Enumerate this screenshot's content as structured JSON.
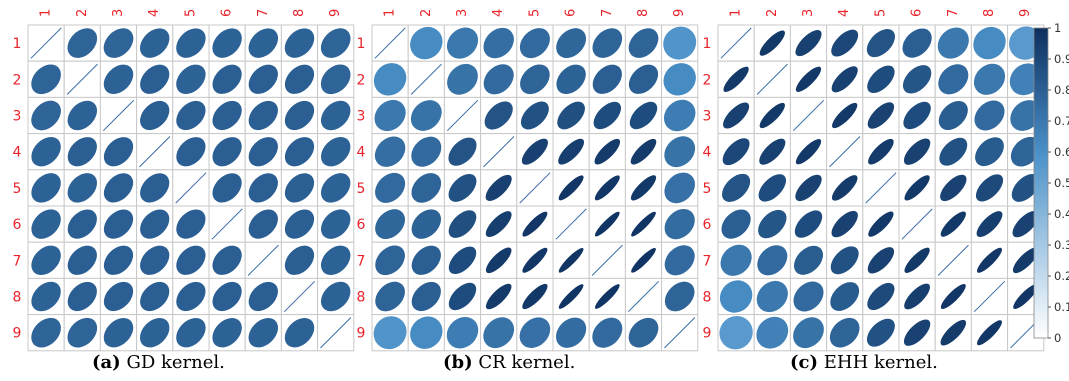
{
  "chart_data": [
    {
      "type": "heatmap",
      "caption_label": "(a)",
      "caption_text": "GD kernel.",
      "row_labels": [
        "1",
        "2",
        "3",
        "4",
        "5",
        "6",
        "7",
        "8",
        "9"
      ],
      "col_labels": [
        "1",
        "2",
        "3",
        "4",
        "5",
        "6",
        "7",
        "8",
        "9"
      ],
      "values": [
        [
          1.0,
          0.78,
          0.78,
          0.79,
          0.79,
          0.79,
          0.79,
          0.79,
          0.78
        ],
        [
          0.78,
          1.0,
          0.79,
          0.8,
          0.79,
          0.8,
          0.8,
          0.8,
          0.78
        ],
        [
          0.78,
          0.79,
          1.0,
          0.8,
          0.8,
          0.8,
          0.8,
          0.8,
          0.79
        ],
        [
          0.79,
          0.8,
          0.8,
          1.0,
          0.8,
          0.8,
          0.8,
          0.8,
          0.79
        ],
        [
          0.79,
          0.79,
          0.8,
          0.8,
          1.0,
          0.8,
          0.8,
          0.8,
          0.79
        ],
        [
          0.79,
          0.8,
          0.8,
          0.8,
          0.8,
          1.0,
          0.8,
          0.8,
          0.79
        ],
        [
          0.79,
          0.8,
          0.8,
          0.8,
          0.8,
          0.8,
          1.0,
          0.8,
          0.79
        ],
        [
          0.79,
          0.8,
          0.8,
          0.8,
          0.8,
          0.8,
          0.8,
          1.0,
          0.79
        ],
        [
          0.78,
          0.78,
          0.79,
          0.79,
          0.79,
          0.79,
          0.79,
          0.79,
          1.0
        ]
      ]
    },
    {
      "type": "heatmap",
      "caption_label": "(b)",
      "caption_text": "CR kernel.",
      "row_labels": [
        "1",
        "2",
        "3",
        "4",
        "5",
        "6",
        "7",
        "8",
        "9"
      ],
      "col_labels": [
        "1",
        "2",
        "3",
        "4",
        "5",
        "6",
        "7",
        "8",
        "9"
      ],
      "values": [
        [
          1.0,
          0.62,
          0.7,
          0.74,
          0.76,
          0.77,
          0.78,
          0.78,
          0.58
        ],
        [
          0.62,
          1.0,
          0.72,
          0.76,
          0.78,
          0.79,
          0.8,
          0.8,
          0.62
        ],
        [
          0.7,
          0.72,
          1.0,
          0.85,
          0.86,
          0.87,
          0.88,
          0.88,
          0.68
        ],
        [
          0.74,
          0.76,
          0.85,
          1.0,
          0.93,
          0.94,
          0.95,
          0.95,
          0.72
        ],
        [
          0.76,
          0.78,
          0.86,
          0.93,
          1.0,
          0.97,
          0.97,
          0.96,
          0.73
        ],
        [
          0.77,
          0.79,
          0.87,
          0.94,
          0.97,
          1.0,
          0.98,
          0.98,
          0.75
        ],
        [
          0.78,
          0.8,
          0.88,
          0.95,
          0.97,
          0.98,
          1.0,
          0.98,
          0.76
        ],
        [
          0.78,
          0.8,
          0.88,
          0.95,
          0.96,
          0.98,
          0.98,
          1.0,
          0.78
        ],
        [
          0.58,
          0.62,
          0.68,
          0.72,
          0.73,
          0.75,
          0.76,
          0.78,
          1.0
        ]
      ]
    },
    {
      "type": "heatmap",
      "caption_label": "(c)",
      "caption_text": "EHH kernel.",
      "row_labels": [
        "1",
        "2",
        "3",
        "4",
        "5",
        "6",
        "7",
        "8",
        "9"
      ],
      "col_labels": [
        "1",
        "2",
        "3",
        "4",
        "5",
        "6",
        "7",
        "8",
        "9"
      ],
      "values": [
        [
          1.0,
          0.96,
          0.93,
          0.9,
          0.85,
          0.8,
          0.7,
          0.62,
          0.55
        ],
        [
          0.96,
          1.0,
          0.96,
          0.93,
          0.88,
          0.84,
          0.76,
          0.7,
          0.66
        ],
        [
          0.93,
          0.96,
          1.0,
          0.96,
          0.92,
          0.88,
          0.81,
          0.76,
          0.72
        ],
        [
          0.9,
          0.93,
          0.96,
          1.0,
          0.95,
          0.92,
          0.86,
          0.82,
          0.78
        ],
        [
          0.85,
          0.88,
          0.92,
          0.95,
          1.0,
          0.96,
          0.92,
          0.89,
          0.86
        ],
        [
          0.8,
          0.84,
          0.88,
          0.92,
          0.96,
          1.0,
          0.96,
          0.94,
          0.92
        ],
        [
          0.7,
          0.76,
          0.81,
          0.86,
          0.92,
          0.96,
          1.0,
          0.97,
          0.95
        ],
        [
          0.62,
          0.7,
          0.76,
          0.82,
          0.89,
          0.94,
          0.97,
          1.0,
          0.97
        ],
        [
          0.55,
          0.66,
          0.72,
          0.78,
          0.86,
          0.92,
          0.95,
          0.97,
          1.0
        ]
      ]
    }
  ],
  "colorbar": {
    "ticks": [
      "0",
      "0.1",
      "0.2",
      "0.3",
      "0.4",
      "0.5",
      "0.6",
      "0.7",
      "0.8",
      "0.9",
      "1"
    ],
    "range": [
      0,
      1
    ]
  },
  "colors": {
    "label": "#e8232a",
    "grid": "#c8c8c8",
    "scale_low": "#ffffff",
    "scale_mid": "#4a90c8",
    "scale_high": "#0d2f5e"
  }
}
